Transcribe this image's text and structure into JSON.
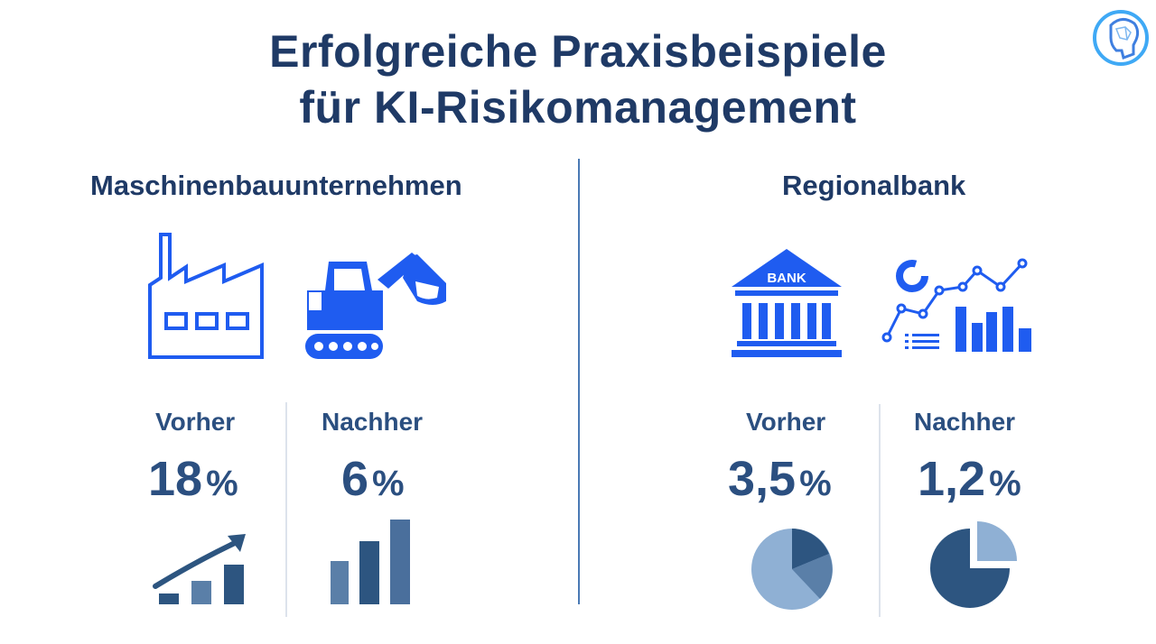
{
  "title_line1": "Erfolgreiche Praxisbeispiele",
  "title_line2": "für KI-Risikomanagement",
  "left": {
    "title": "Maschinenbauunternehmen",
    "before_label": "Vorher",
    "before_value": "18",
    "before_unit": "%",
    "after_label": "Nachher",
    "after_value": "6",
    "after_unit": "%"
  },
  "right": {
    "title": "Regionalbank",
    "bank_sign": "BANK",
    "before_label": "Vorher",
    "before_value": "3,5",
    "before_unit": "%",
    "after_label": "Nachher",
    "after_value": "1,2",
    "after_unit": "%"
  },
  "colors": {
    "accent_blue": "#1f5cf0",
    "navy": "#1f3a66",
    "steel": "#2b4f80",
    "chart_dark": "#2d5580",
    "chart_mid": "#5a7fa8",
    "chart_light": "#8fb0d4"
  },
  "icons": [
    "brain-logo-icon",
    "factory-icon",
    "excavator-icon",
    "rising-bars-arrow-icon",
    "bar-chart-icon",
    "bank-icon",
    "analytics-icon",
    "pie-chart-icon"
  ]
}
